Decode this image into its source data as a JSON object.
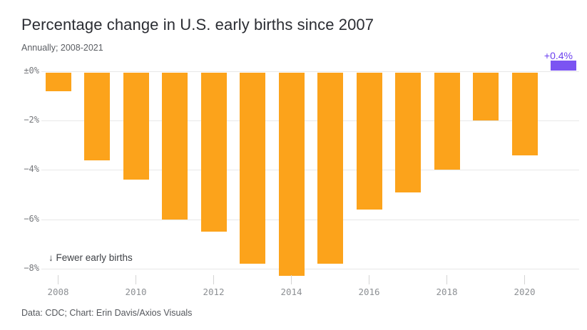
{
  "header": {
    "title": "Percentage change in U.S. early births since 2007",
    "subtitle": "Annually; 2008-2021"
  },
  "annotations": {
    "positive_value_label": "+0.4%",
    "direction_note": "↓ Fewer early births"
  },
  "footer": {
    "credit": "Data: CDC; Chart: Erin Davis/Axios Visuals"
  },
  "colors": {
    "negative_bar": "#FCA31B",
    "positive_bar": "#7B54F2",
    "positive_text": "#6B40EF",
    "gridline": "#E8E8E8",
    "axis_tick": "#D4D4D4"
  },
  "chart_data": {
    "type": "bar",
    "title": "Percentage change in U.S. early births since 2007",
    "subtitle": "Annually; 2008-2021",
    "xlabel": "",
    "ylabel": "",
    "x": [
      2008,
      2009,
      2010,
      2011,
      2012,
      2013,
      2014,
      2015,
      2016,
      2017,
      2018,
      2019,
      2020,
      2021
    ],
    "values": [
      -0.8,
      -3.6,
      -4.4,
      -6.0,
      -6.5,
      -7.8,
      -8.3,
      -7.8,
      -5.6,
      -4.9,
      -4.0,
      -2.0,
      -3.4,
      0.4
    ],
    "units": "percent",
    "bar_color_rule": "negative values orange (#FCA31B), positive values purple (#7B54F2)",
    "y_ticks": {
      "values": [
        0,
        -2,
        -4,
        -6,
        -8
      ],
      "labels": [
        "±0%",
        "−2%",
        "−4%",
        "−6%",
        "−8%"
      ]
    },
    "x_tick_years": [
      2008,
      2010,
      2012,
      2014,
      2016,
      2018,
      2020
    ],
    "ylim": [
      -8.8,
      0.6
    ],
    "grid": true,
    "legend": false,
    "annotations": [
      {
        "text": "+0.4%",
        "target_year": 2021,
        "color": "#6B40EF"
      },
      {
        "text": "↓ Fewer early births",
        "position": "bottom-left of plot"
      }
    ]
  }
}
